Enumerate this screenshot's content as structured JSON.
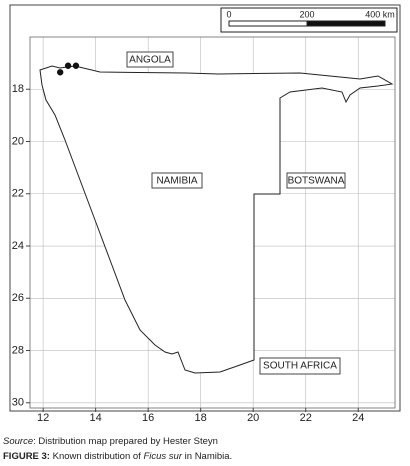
{
  "map": {
    "scale_bar": {
      "labels": [
        "0",
        "200",
        "400 km"
      ]
    },
    "xlim": [
      11.5,
      25.4
    ],
    "ylim": [
      16,
      30.2
    ],
    "xticks": [
      12,
      14,
      16,
      18,
      20,
      22,
      24
    ],
    "yticks": [
      18,
      20,
      22,
      24,
      26,
      28,
      30
    ],
    "labels": {
      "angola": "ANGOLA",
      "namibia": "NAMIBIA",
      "botswana": "BOTSWANA",
      "south_africa": "SOUTH AFRICA"
    },
    "records": {
      "lon": [
        12.65,
        12.95,
        13.25
      ],
      "lat": [
        17.35,
        17.1,
        17.1
      ],
      "color": "#111111"
    }
  },
  "caption": {
    "source_label": "Source",
    "source_text": ": Distribution map prepared by Hester Steyn",
    "figure_label": "FIGURE 3:",
    "figure_text_1": " Known distribution of ",
    "figure_species": "Ficus sur",
    "figure_text_2": " in Namibia."
  }
}
